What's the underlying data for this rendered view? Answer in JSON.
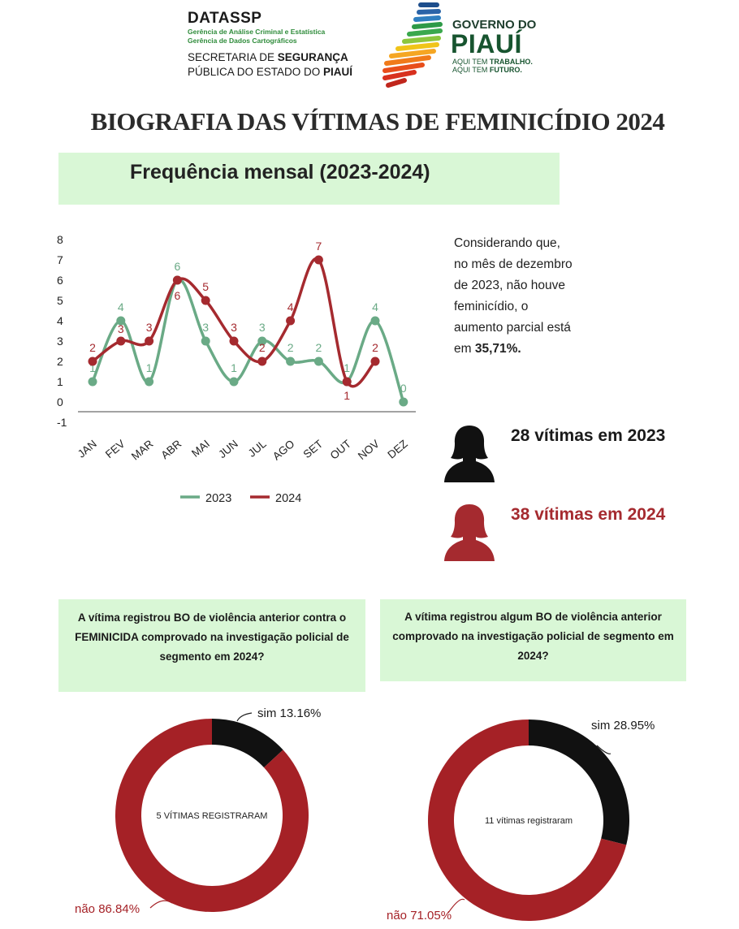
{
  "header": {
    "org_name": "DATASSP",
    "org_sub1": "Gerência de Análise Criminal e Estatística",
    "org_sub2": "Gerência de Dados Cartográficos",
    "secretaria_line1_a": "SECRETARIA DE ",
    "secretaria_line1_b": "SEGURANÇA",
    "secretaria_line2_a": "PÚBLICA DO ESTADO DO ",
    "secretaria_line2_b": "PIAUÍ",
    "gov_line1": "GOVERNO DO",
    "gov_line2": "PIAUÍ",
    "gov_slogan1_a": "AQUI TEM ",
    "gov_slogan1_b": "TRABALHO.",
    "gov_slogan2_a": "AQUI TEM ",
    "gov_slogan2_b": "FUTURO."
  },
  "title": "BIOGRAFIA DAS VÍTIMAS DE FEMINICÍDIO 2024",
  "colors": {
    "series_2023": "#6aaa86",
    "series_2024": "#a52a2f",
    "panel_green": "#d9f7d6",
    "donut_red": "#a52126",
    "donut_black": "#111111"
  },
  "note": {
    "text": "Considerando que, no mês de dezembro de 2023, não houve feminicídio, o aumento parcial está em ",
    "highlight": "35,71%."
  },
  "victims": {
    "label_2023": "28 vítimas em 2023",
    "label_2024": "38 vítimas em 2024",
    "icon": "woman-silhouette-icon"
  },
  "chart_data": [
    {
      "type": "line",
      "title": "Frequência mensal (2023-2024)",
      "xlabel": "",
      "ylabel": "",
      "categories": [
        "JAN",
        "FEV",
        "MAR",
        "ABR",
        "MAI",
        "JUN",
        "JUL",
        "AGO",
        "SET",
        "OUT",
        "NOV",
        "DEZ"
      ],
      "ylim": [
        -1,
        8
      ],
      "yticks": [
        "-1",
        "0",
        "1",
        "2",
        "3",
        "4",
        "5",
        "6",
        "7",
        "8"
      ],
      "series": [
        {
          "name": "2023",
          "values": [
            1,
            4,
            1,
            6,
            3,
            1,
            3,
            2,
            2,
            1,
            4,
            0
          ]
        },
        {
          "name": "2024",
          "values": [
            2,
            3,
            3,
            6,
            5,
            3,
            2,
            4,
            7,
            1,
            2,
            null
          ]
        }
      ],
      "legend": "bottom",
      "grid": false
    },
    {
      "type": "pie",
      "title": "A vítima registrou BO de violência anterior contra o FEMINICIDA comprovado na investigação policial de segmento em 2024?",
      "center_label": "5 VÍTIMAS REGISTRARAM",
      "slices": [
        {
          "label": "sim",
          "value": 13.16,
          "text": "sim 13.16%"
        },
        {
          "label": "não",
          "value": 86.84,
          "text": "não 86.84%"
        }
      ]
    },
    {
      "type": "pie",
      "title": "A vítima registrou algum BO de violência anterior comprovado na investigação policial de segmento em 2024?",
      "center_label": "11 vítimas registraram",
      "slices": [
        {
          "label": "sim",
          "value": 28.95,
          "text": "sim 28.95%"
        },
        {
          "label": "não",
          "value": 71.05,
          "text": "não 71.05%"
        }
      ]
    }
  ]
}
